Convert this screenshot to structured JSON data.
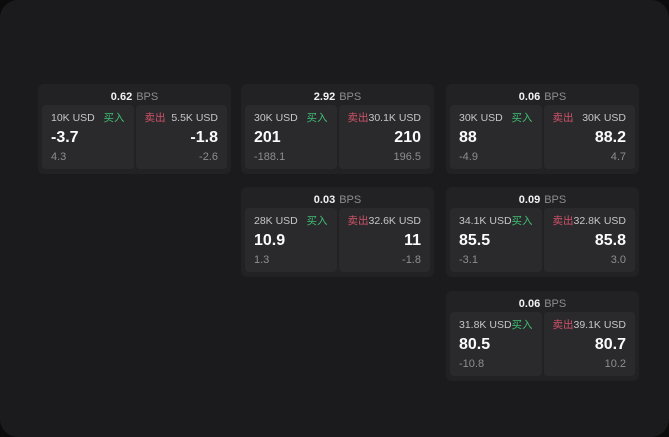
{
  "labels": {
    "bps_unit": "BPS",
    "buy": "买入",
    "sell": "卖出"
  },
  "colors": {
    "panel-bg": "#1b1b1d",
    "card-bg": "#222224",
    "tile-bg": "#2a2a2c",
    "buy-green": "#3fbf73",
    "sell-red": "#cf5268"
  },
  "cards": [
    {
      "bps": "0.62",
      "buy": {
        "amount": "10K USD",
        "value": "-3.7",
        "sub": "4.3"
      },
      "sell": {
        "amount": "5.5K USD",
        "value": "-1.8",
        "sub": "-2.6"
      }
    },
    {
      "bps": "2.92",
      "buy": {
        "amount": "30K USD",
        "value": "201",
        "sub": "-188.1"
      },
      "sell": {
        "amount": "30.1K USD",
        "value": "210",
        "sub": "196.5"
      }
    },
    {
      "bps": "0.06",
      "buy": {
        "amount": "30K USD",
        "value": "88",
        "sub": "-4.9"
      },
      "sell": {
        "amount": "30K USD",
        "value": "88.2",
        "sub": "4.7"
      }
    },
    {
      "bps": "0.03",
      "buy": {
        "amount": "28K USD",
        "value": "10.9",
        "sub": "1.3"
      },
      "sell": {
        "amount": "32.6K USD",
        "value": "11",
        "sub": "-1.8"
      }
    },
    {
      "bps": "0.09",
      "buy": {
        "amount": "34.1K USD",
        "value": "85.5",
        "sub": "-3.1"
      },
      "sell": {
        "amount": "32.8K USD",
        "value": "85.8",
        "sub": "3.0"
      }
    },
    {
      "bps": "0.06",
      "buy": {
        "amount": "31.8K USD",
        "value": "80.5",
        "sub": "-10.8"
      },
      "sell": {
        "amount": "39.1K USD",
        "value": "80.7",
        "sub": "10.2"
      }
    }
  ]
}
